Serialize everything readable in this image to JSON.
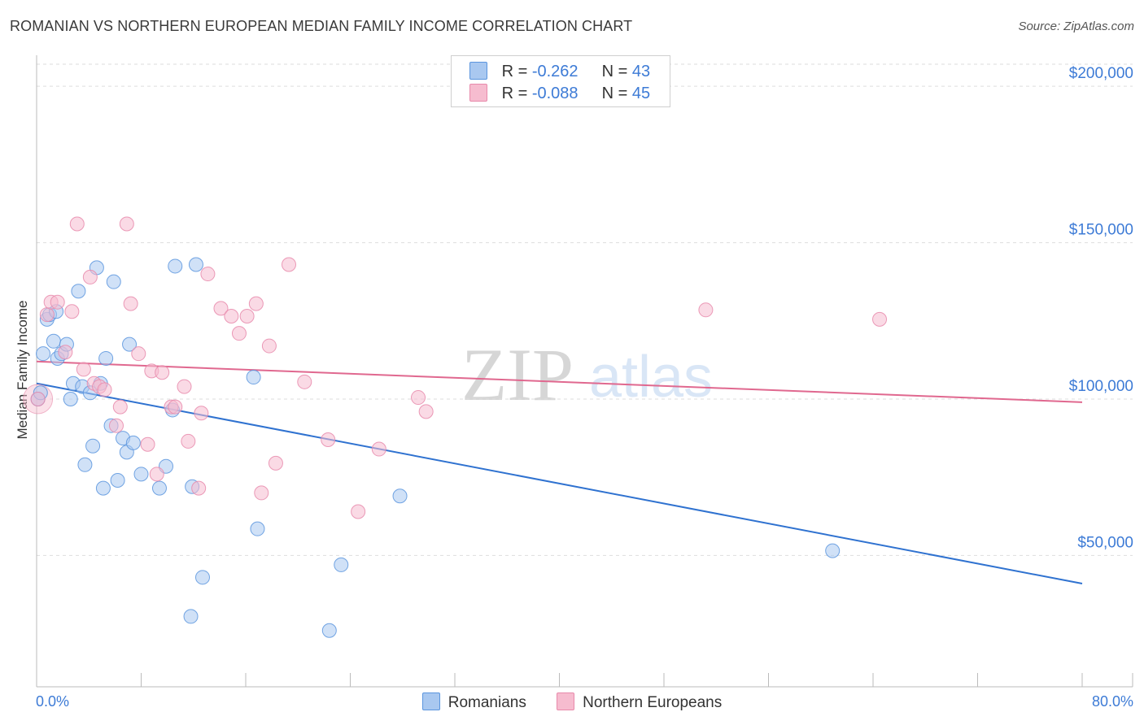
{
  "title": "ROMANIAN VS NORTHERN EUROPEAN MEDIAN FAMILY INCOME CORRELATION CHART",
  "source": "Source: ZipAtlas.com",
  "watermark": {
    "zip": "ZIP",
    "atlas": "atlas"
  },
  "colors": {
    "blue_fill": "#a9c8f0",
    "blue_stroke": "#5b95de",
    "blue_line": "#2f72d0",
    "pink_fill": "#f6bccf",
    "pink_stroke": "#e88aab",
    "pink_line": "#e0688f",
    "grid": "#dddddd",
    "tick_text": "#3d7bd6"
  },
  "legend": {
    "rows": [
      {
        "r_label": "R =",
        "r_value": "-0.262",
        "n_label": "N =",
        "n_value": "43"
      },
      {
        "r_label": "R =",
        "r_value": "-0.088",
        "n_label": "N =",
        "n_value": "45"
      }
    ]
  },
  "bottom_legend": {
    "items": [
      "Romanians",
      "Northern Europeans"
    ]
  },
  "chart_data": {
    "type": "scatter",
    "title": "ROMANIAN VS NORTHERN EUROPEAN MEDIAN FAMILY INCOME CORRELATION CHART",
    "xlabel": "",
    "ylabel": "Median Family Income",
    "xlim": [
      0,
      80
    ],
    "ylim": [
      8000,
      212000
    ],
    "x_tick_labels": [
      {
        "x": 0,
        "label": "0.0%"
      },
      {
        "x": 80,
        "label": "80.0%"
      }
    ],
    "x_minor_ticks": [
      0,
      8,
      16,
      24,
      32,
      40,
      48,
      56,
      64,
      72,
      80
    ],
    "y_ticks": [
      {
        "y": 50000,
        "label": "$50,000"
      },
      {
        "y": 100000,
        "label": "$100,000"
      },
      {
        "y": 150000,
        "label": "$150,000"
      },
      {
        "y": 200000,
        "label": "$200,000"
      }
    ],
    "series": [
      {
        "name": "Romanians",
        "color": "blue",
        "trend": {
          "x0": 0,
          "y0": 105000,
          "x1": 80,
          "y1": 41000
        },
        "points": [
          {
            "x": 0.1,
            "y": 100000
          },
          {
            "x": 0.5,
            "y": 114500
          },
          {
            "x": 0.8,
            "y": 125500
          },
          {
            "x": 1.0,
            "y": 127000
          },
          {
            "x": 1.3,
            "y": 118500
          },
          {
            "x": 1.5,
            "y": 128000
          },
          {
            "x": 1.6,
            "y": 113000
          },
          {
            "x": 1.9,
            "y": 114500
          },
          {
            "x": 2.3,
            "y": 117500
          },
          {
            "x": 2.6,
            "y": 100000
          },
          {
            "x": 2.8,
            "y": 105000
          },
          {
            "x": 3.2,
            "y": 134500
          },
          {
            "x": 3.5,
            "y": 104000
          },
          {
            "x": 3.7,
            "y": 79000
          },
          {
            "x": 4.1,
            "y": 102000
          },
          {
            "x": 4.3,
            "y": 85000
          },
          {
            "x": 4.6,
            "y": 142000
          },
          {
            "x": 4.9,
            "y": 105000
          },
          {
            "x": 5.1,
            "y": 71500
          },
          {
            "x": 5.3,
            "y": 113000
          },
          {
            "x": 5.7,
            "y": 91500
          },
          {
            "x": 5.9,
            "y": 137500
          },
          {
            "x": 6.2,
            "y": 74000
          },
          {
            "x": 6.6,
            "y": 87500
          },
          {
            "x": 6.9,
            "y": 83000
          },
          {
            "x": 7.1,
            "y": 117500
          },
          {
            "x": 7.4,
            "y": 86000
          },
          {
            "x": 8.0,
            "y": 76000
          },
          {
            "x": 9.4,
            "y": 71500
          },
          {
            "x": 9.9,
            "y": 78500
          },
          {
            "x": 10.4,
            "y": 96500
          },
          {
            "x": 10.6,
            "y": 142500
          },
          {
            "x": 11.8,
            "y": 30500
          },
          {
            "x": 11.9,
            "y": 72000
          },
          {
            "x": 12.2,
            "y": 143000
          },
          {
            "x": 12.7,
            "y": 43000
          },
          {
            "x": 16.6,
            "y": 107000
          },
          {
            "x": 16.9,
            "y": 58500
          },
          {
            "x": 22.4,
            "y": 26000
          },
          {
            "x": 23.3,
            "y": 47000
          },
          {
            "x": 27.8,
            "y": 69000
          },
          {
            "x": 60.9,
            "y": 51500
          },
          {
            "x": 0.3,
            "y": 102000
          }
        ]
      },
      {
        "name": "Northern Europeans",
        "color": "pink",
        "trend": {
          "x0": 0,
          "y0": 112000,
          "x1": 80,
          "y1": 99000
        },
        "points": [
          {
            "x": 0.1,
            "y": 100000
          },
          {
            "x": 0.8,
            "y": 127000
          },
          {
            "x": 1.1,
            "y": 131000
          },
          {
            "x": 1.6,
            "y": 131000
          },
          {
            "x": 2.2,
            "y": 115000
          },
          {
            "x": 2.7,
            "y": 128000
          },
          {
            "x": 3.1,
            "y": 156000
          },
          {
            "x": 3.6,
            "y": 109500
          },
          {
            "x": 4.1,
            "y": 139000
          },
          {
            "x": 4.4,
            "y": 105000
          },
          {
            "x": 4.8,
            "y": 104000
          },
          {
            "x": 5.2,
            "y": 103000
          },
          {
            "x": 6.1,
            "y": 91500
          },
          {
            "x": 6.4,
            "y": 97500
          },
          {
            "x": 6.9,
            "y": 156000
          },
          {
            "x": 7.2,
            "y": 130500
          },
          {
            "x": 7.8,
            "y": 114500
          },
          {
            "x": 8.5,
            "y": 85500
          },
          {
            "x": 8.8,
            "y": 109000
          },
          {
            "x": 9.2,
            "y": 76000
          },
          {
            "x": 9.6,
            "y": 108500
          },
          {
            "x": 10.3,
            "y": 97500
          },
          {
            "x": 10.6,
            "y": 97500
          },
          {
            "x": 11.3,
            "y": 104000
          },
          {
            "x": 11.6,
            "y": 86500
          },
          {
            "x": 12.4,
            "y": 71500
          },
          {
            "x": 12.6,
            "y": 95500
          },
          {
            "x": 13.1,
            "y": 140000
          },
          {
            "x": 14.1,
            "y": 129000
          },
          {
            "x": 14.9,
            "y": 126500
          },
          {
            "x": 15.5,
            "y": 121000
          },
          {
            "x": 16.1,
            "y": 126500
          },
          {
            "x": 16.8,
            "y": 130500
          },
          {
            "x": 17.2,
            "y": 70000
          },
          {
            "x": 17.8,
            "y": 117000
          },
          {
            "x": 18.3,
            "y": 79500
          },
          {
            "x": 19.3,
            "y": 143000
          },
          {
            "x": 20.5,
            "y": 105500
          },
          {
            "x": 22.3,
            "y": 87000
          },
          {
            "x": 24.6,
            "y": 64000
          },
          {
            "x": 26.2,
            "y": 84000
          },
          {
            "x": 29.2,
            "y": 100500
          },
          {
            "x": 29.8,
            "y": 96000
          },
          {
            "x": 51.2,
            "y": 128500
          },
          {
            "x": 64.5,
            "y": 125500
          }
        ]
      }
    ]
  }
}
